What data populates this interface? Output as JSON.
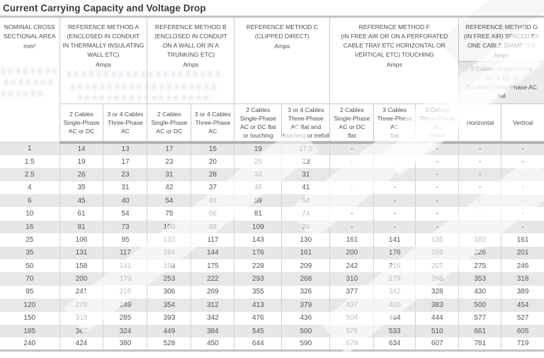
{
  "title": "Current Carrying Capacity and Voltage Drop",
  "colors": {
    "row_stripe": "#e7e7e7",
    "header_border": "#c9c9c9",
    "header_divider": "#b3b3b3",
    "text": "#4d4d4d",
    "ghost_bleed_blue": "#b9c4d6"
  },
  "table": {
    "area_column": {
      "title": "NOMINAL CROSS\nSECTIONAL AREA",
      "unit": "mm²"
    },
    "groups": {
      "a": {
        "title": "REFERENCE METHOD A\n(ENCLOSED IN CONDUIT\nIN THERMALLY INSULATING\nWALL ETC)",
        "unit": "Amps",
        "sub": [
          "2 Cables\nSingle-Phase\nAC or DC",
          "3 or 4 Cables\nThree-Phase\nAC"
        ]
      },
      "b": {
        "title": "REFERENCE METHOD B\n(ENCLOSED IN CONDUIT\nON A WALL OR IN A\nTRUNKING ETC)",
        "unit": "Amps",
        "sub": [
          "2 Cables\nSingle-Phase\nAC or DC",
          "3 or 4 Cables\nThree-Phase\nAC"
        ]
      },
      "c": {
        "title": "REFERENCE METHOD C\n(CLIPPED DIRECT)",
        "unit": "Amps",
        "sub": [
          "2 Cables\nSingle-Phase\nAC or DC flat\nor touching",
          "3 or 4 Cables\nThree-Phase\nAC flat and\ntouching or trefoil"
        ]
      },
      "f": {
        "title": "REFERENCE METHOD F\n(IN FREE AIR OR ON A PERFORATED\nCABLE TRAY ETC HORIZONTAL OR\nVERTICAL ETC) TOUCHING",
        "unit": "Amps",
        "sub": [
          "2 Cables\nSingle-Phase\nAC or DC\nflat",
          "3 Cables\nThree-Phase\nAC\nflat",
          "3 Cables\nThree-Phase\nAC\ntrefoil"
        ]
      },
      "g": {
        "title": "REFERENCE METHOD G\n(IN FREE AIR) SPACED BY\nONE CABLE DIAMETER",
        "unit": "Amps",
        "combined": "2 Cables Single-Phase\nAC or DC or\n3 Cables Three-Phase AC\nflat",
        "sub": [
          "Horizontal",
          "Vertical"
        ]
      }
    },
    "rows": [
      [
        "1",
        "14",
        "13",
        "17",
        "15",
        "19",
        "17.5",
        "-",
        "-",
        "-",
        "-",
        "-"
      ],
      [
        "1.5",
        "19",
        "17",
        "23",
        "20",
        "25",
        "23",
        "-",
        "-",
        "-",
        "-",
        "-"
      ],
      [
        "2.5",
        "26",
        "23",
        "31",
        "28",
        "34",
        "31",
        "-",
        "-",
        "-",
        "-",
        "-"
      ],
      [
        "4",
        "35",
        "31",
        "42",
        "37",
        "46",
        "41",
        "-",
        "-",
        "-",
        "-",
        "-"
      ],
      [
        "6",
        "45",
        "40",
        "54",
        "48",
        "59",
        "54",
        "-",
        "-",
        "-",
        "-",
        "-"
      ],
      [
        "10",
        "61",
        "54",
        "75",
        "66",
        "81",
        "74",
        "-",
        "-",
        "-",
        "-",
        "-"
      ],
      [
        "16",
        "81",
        "73",
        "100",
        "88",
        "109",
        "99",
        "-",
        "-",
        "-",
        "-",
        "-"
      ],
      [
        "25",
        "106",
        "95",
        "133",
        "117",
        "143",
        "130",
        "161",
        "141",
        "135",
        "182",
        "161"
      ],
      [
        "35",
        "131",
        "117",
        "164",
        "144",
        "176",
        "161",
        "200",
        "176",
        "169",
        "226",
        "201"
      ],
      [
        "50",
        "158",
        "141",
        "198",
        "175",
        "228",
        "209",
        "242",
        "216",
        "207",
        "275",
        "246"
      ],
      [
        "70",
        "200",
        "179",
        "253",
        "222",
        "293",
        "268",
        "310",
        "279",
        "268",
        "353",
        "318"
      ],
      [
        "95",
        "241",
        "216",
        "306",
        "269",
        "355",
        "326",
        "377",
        "342",
        "328",
        "430",
        "389"
      ],
      [
        "120",
        "278",
        "249",
        "354",
        "312",
        "413",
        "379",
        "437",
        "400",
        "383",
        "500",
        "454"
      ],
      [
        "150",
        "318",
        "285",
        "393",
        "342",
        "476",
        "436",
        "504",
        "464",
        "444",
        "577",
        "527"
      ],
      [
        "185",
        "362",
        "324",
        "449",
        "384",
        "545",
        "500",
        "575",
        "533",
        "510",
        "661",
        "605"
      ],
      [
        "240",
        "424",
        "380",
        "528",
        "450",
        "644",
        "590",
        "679",
        "634",
        "607",
        "781",
        "719"
      ]
    ]
  }
}
